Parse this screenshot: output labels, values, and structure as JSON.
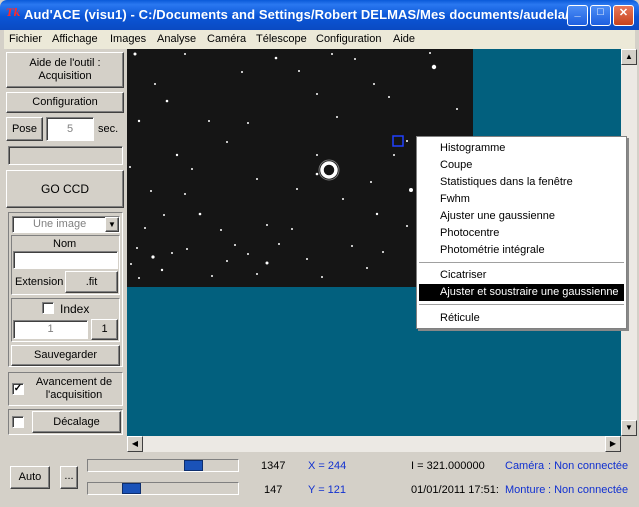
{
  "window": {
    "app_icon_text": "Tk",
    "title": "Aud'ACE (visu1) - C:/Documents and Settings/Robert DELMAS/Mes documents/audela/...",
    "minimize": "_",
    "maximize": "□",
    "close": "✕"
  },
  "menu": [
    "Fichier",
    "Affichage",
    "Images",
    "Analyse",
    "Caméra",
    "Télescope",
    "Configuration",
    "Aide"
  ],
  "panel": {
    "aide_button": "Aide de l'outil :\nAcquisition",
    "config_button": "Configuration",
    "pose_label": "Pose",
    "pose_value": "5",
    "pose_unit": "sec.",
    "go_button": "GO CCD",
    "mode_select": "Une image",
    "nom_label": "Nom",
    "nom_value": "",
    "extension_label": "Extension",
    "extension_button": ".fit",
    "index_label": "Index",
    "index_checked": false,
    "index_value": "1",
    "index_button": "1",
    "save_button": "Sauvegarder",
    "avancement_label": "Avancement de\nl'acquisition",
    "avancement_checked": true,
    "decalage_button": "Décalage",
    "decalage_checked": false
  },
  "context_menu": {
    "items_top": [
      "Histogramme",
      "Coupe",
      "Statistiques dans la fenêtre",
      "Fwhm",
      "Ajuster une gaussienne",
      "Photocentre",
      "Photométrie intégrale"
    ],
    "items_mid": [
      "Cicatriser",
      "Ajuster et soustraire une gaussienne"
    ],
    "items_bottom": [
      "Réticule"
    ],
    "selected": "Ajuster et soustraire une gaussienne"
  },
  "bottom": {
    "auto_button": "Auto",
    "dots_button": "...",
    "slider1_value": "1347",
    "slider2_value": "147",
    "slider1_fraction": 0.73,
    "slider2_fraction": 0.26,
    "x_readout": "X = 244",
    "y_readout": "Y = 121",
    "intensity": "I = 321.000000",
    "datetime": "01/01/2011 17:51:",
    "camera_label": "Caméra",
    "camera_status": ": Non connectée",
    "monture_label": "Monture",
    "monture_status": ": Non connectée"
  },
  "colors": {
    "viewport_bg": "#02607e",
    "title_blue": "#0a5ad8",
    "readout_blue": "#1030d0"
  }
}
